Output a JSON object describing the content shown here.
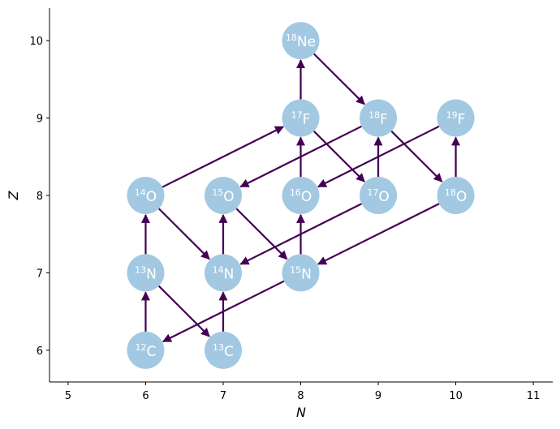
{
  "chart_data": {
    "type": "network",
    "x_label": "N",
    "y_label": "Z",
    "xlim": [
      4.76,
      11.25
    ],
    "ylim": [
      5.59,
      10.42
    ],
    "xticks": [
      5,
      6,
      7,
      8,
      9,
      10,
      11
    ],
    "yticks": [
      6,
      7,
      8,
      9,
      10
    ],
    "node_color": "#a3c9e2",
    "edge_color": "#440154",
    "nodes": [
      {
        "mass": 12,
        "symbol": "C",
        "x": 6,
        "y": 6
      },
      {
        "mass": 13,
        "symbol": "C",
        "x": 7,
        "y": 6
      },
      {
        "mass": 13,
        "symbol": "N",
        "x": 6,
        "y": 7
      },
      {
        "mass": 14,
        "symbol": "N",
        "x": 7,
        "y": 7
      },
      {
        "mass": 15,
        "symbol": "N",
        "x": 8,
        "y": 7
      },
      {
        "mass": 14,
        "symbol": "O",
        "x": 6,
        "y": 8
      },
      {
        "mass": 15,
        "symbol": "O",
        "x": 7,
        "y": 8
      },
      {
        "mass": 16,
        "symbol": "O",
        "x": 8,
        "y": 8
      },
      {
        "mass": 17,
        "symbol": "O",
        "x": 9,
        "y": 8
      },
      {
        "mass": 18,
        "symbol": "O",
        "x": 10,
        "y": 8
      },
      {
        "mass": 17,
        "symbol": "F",
        "x": 8,
        "y": 9
      },
      {
        "mass": 18,
        "symbol": "F",
        "x": 9,
        "y": 9
      },
      {
        "mass": 19,
        "symbol": "F",
        "x": 10,
        "y": 9
      },
      {
        "mass": 18,
        "symbol": "Ne",
        "x": 8,
        "y": 10
      }
    ],
    "edges": [
      [
        0,
        2
      ],
      [
        2,
        1
      ],
      [
        1,
        3
      ],
      [
        2,
        5
      ],
      [
        5,
        3
      ],
      [
        3,
        6
      ],
      [
        6,
        4
      ],
      [
        4,
        7
      ],
      [
        7,
        10
      ],
      [
        10,
        8
      ],
      [
        8,
        11
      ],
      [
        11,
        9
      ],
      [
        9,
        12
      ],
      [
        13,
        11
      ],
      [
        10,
        13
      ],
      [
        5,
        10
      ],
      [
        11,
        6
      ],
      [
        12,
        7
      ],
      [
        8,
        3
      ],
      [
        9,
        4
      ],
      [
        4,
        0
      ]
    ]
  }
}
